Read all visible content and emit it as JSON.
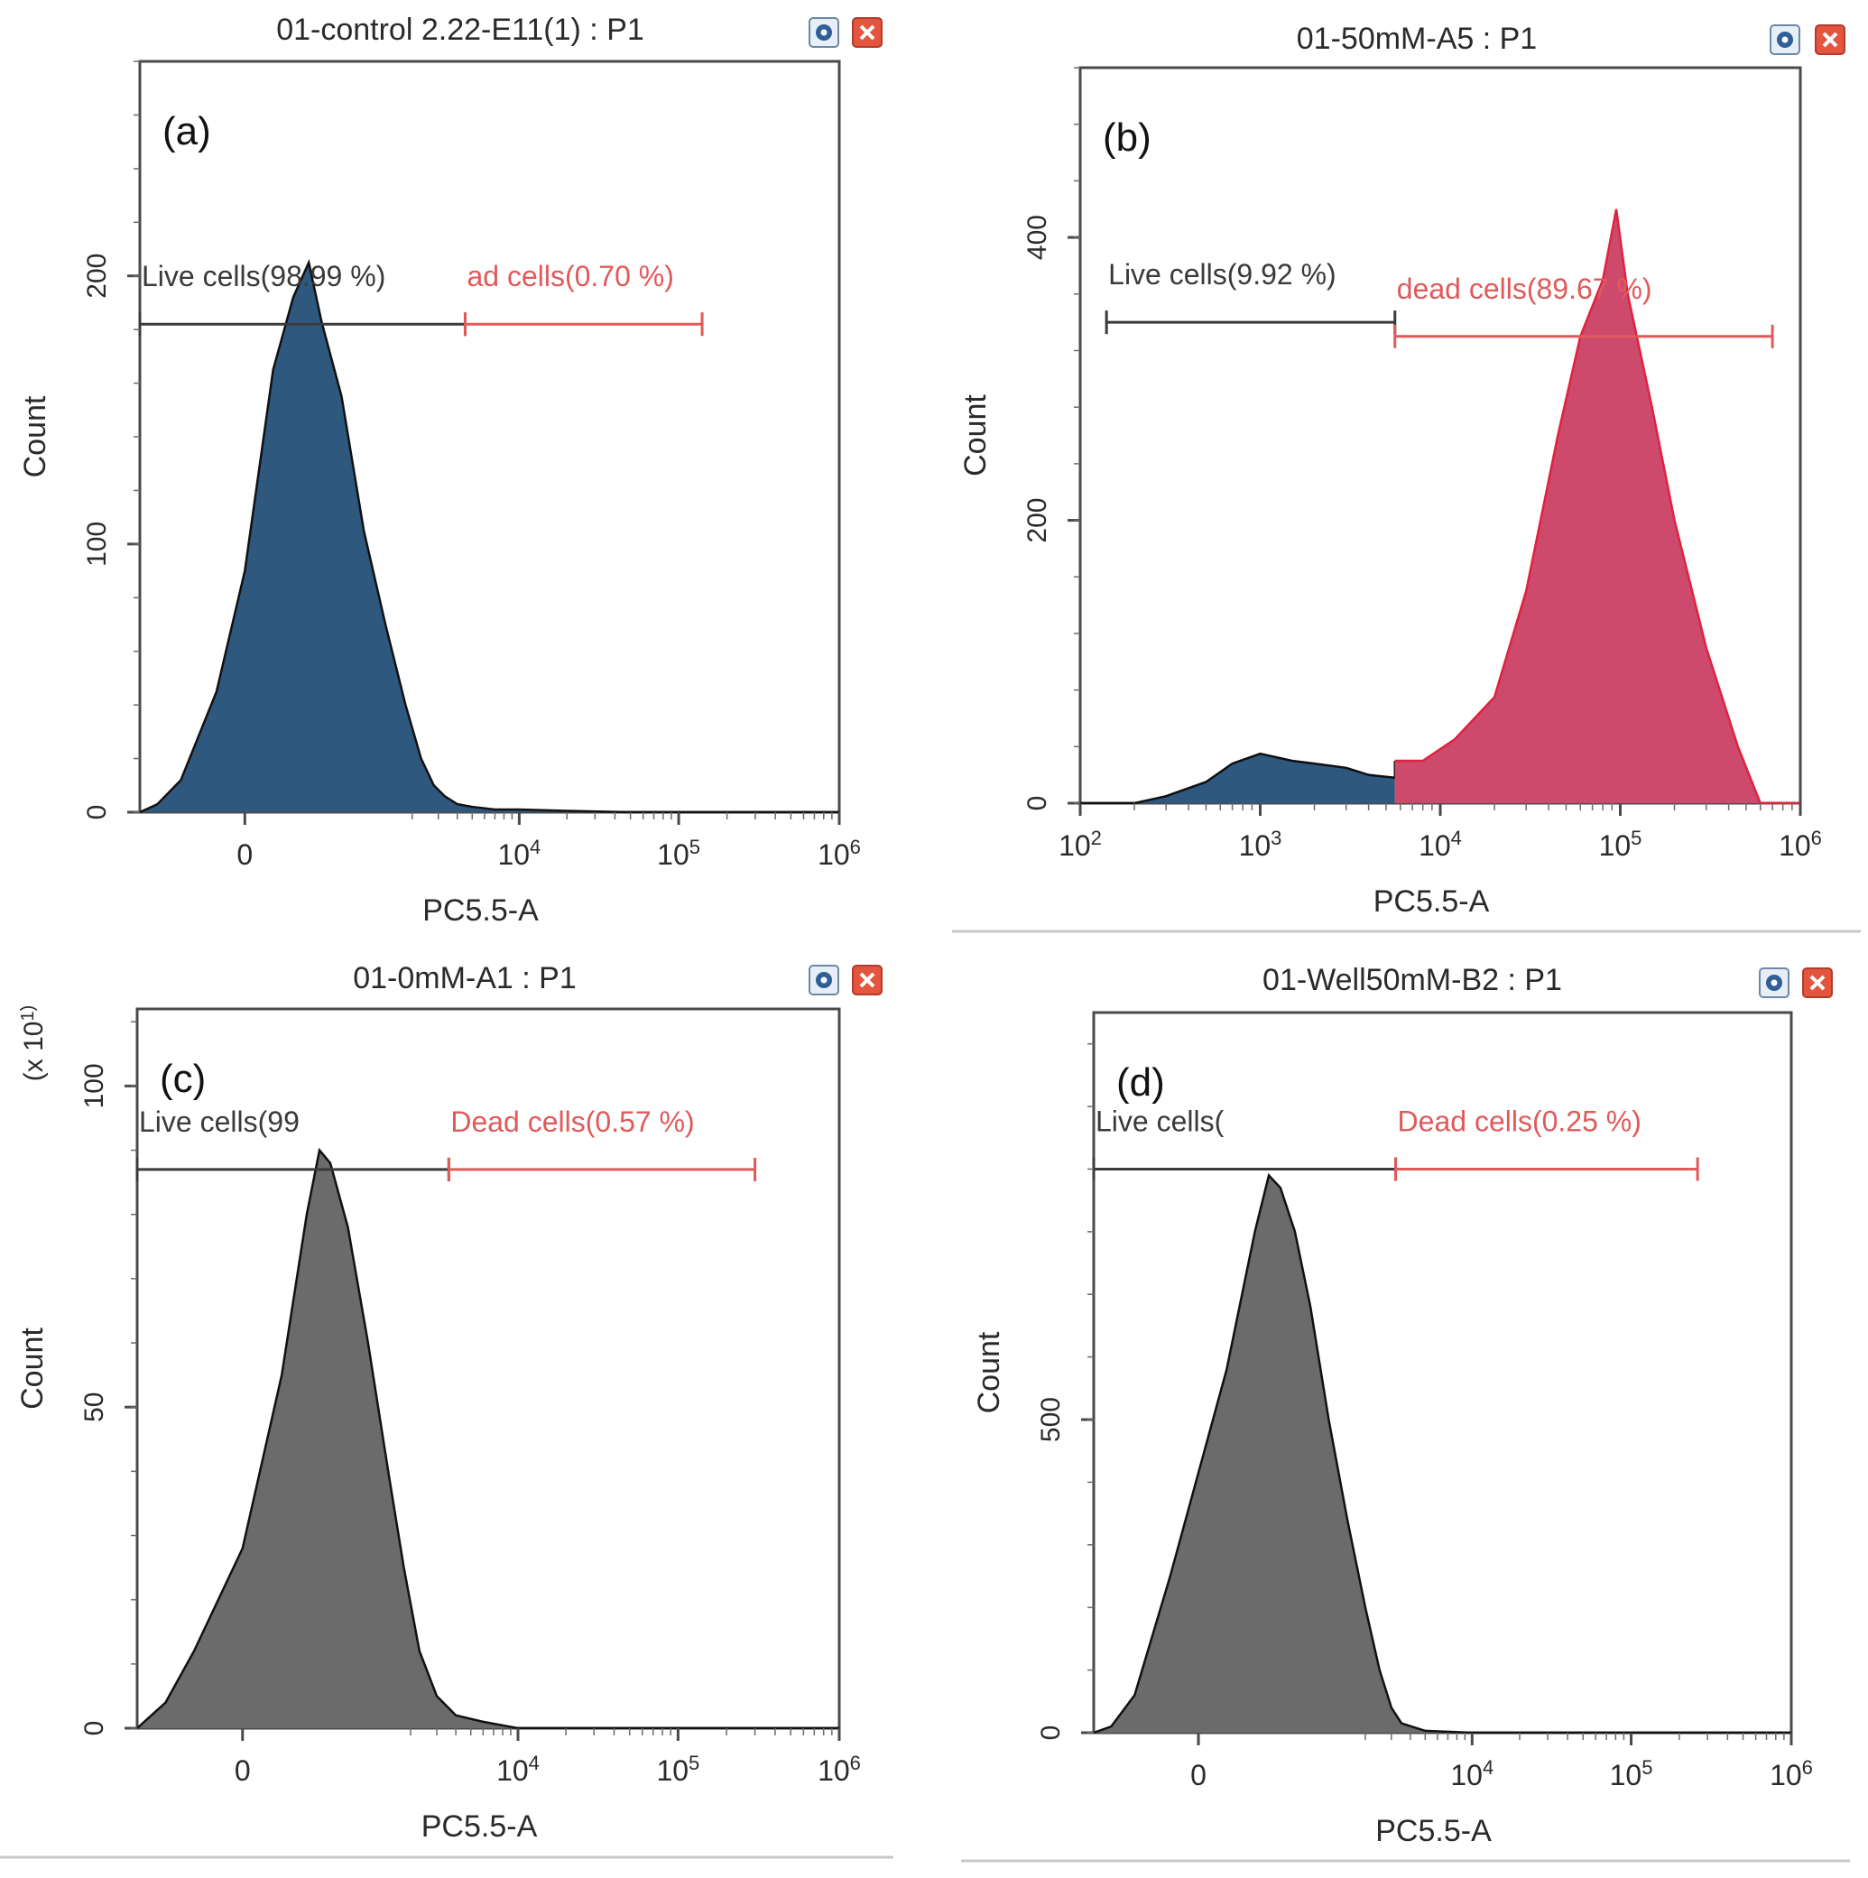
{
  "figure": {
    "separator_color": "#c8c8c8"
  },
  "chart_data": [
    {
      "type": "area",
      "panel_label": "(a)",
      "title": "01-control 2.22-E11(1) : P1",
      "xlabel": "PC5.5-A",
      "ylabel": "Count",
      "y_multiplier_label": "",
      "x_scale": "biexponential",
      "xlim": [
        -700,
        1000000
      ],
      "x_ticks": [
        {
          "value": 0,
          "label": "0"
        },
        {
          "value": 10000,
          "label": "10",
          "exp": "4"
        },
        {
          "value": 100000,
          "label": "10",
          "exp": "5"
        },
        {
          "value": 1000000,
          "label": "10",
          "exp": "6"
        }
      ],
      "ylim": [
        0,
        280
      ],
      "y_ticks": [
        0,
        100,
        200
      ],
      "fill_color": "#2f587f",
      "histogram": {
        "x": [
          -700,
          -500,
          -300,
          -100,
          0,
          100,
          200,
          300,
          400,
          600,
          900,
          1300,
          1800,
          2300,
          2800,
          3300,
          4000,
          5000,
          7000,
          10000,
          20000,
          50000,
          100000,
          200000,
          1000000
        ],
        "y": [
          0,
          3,
          12,
          45,
          90,
          165,
          192,
          205,
          183,
          155,
          105,
          70,
          40,
          20,
          10,
          6,
          3,
          2,
          1,
          1,
          0.5,
          0,
          0,
          0,
          0
        ]
      },
      "gates": [
        {
          "label": "Live cells(98.99 %)",
          "x0": -700,
          "x1": 4500,
          "y": 182,
          "color": "#3a3a3a"
        },
        {
          "label": "ad cells(0.70 %)",
          "x0": 4500,
          "x1": 140000,
          "y": 182,
          "color": "#e05a5a"
        }
      ]
    },
    {
      "type": "area",
      "panel_label": "(b)",
      "title": "01-50mM-A5 : P1",
      "xlabel": "PC5.5-A",
      "ylabel": "Count",
      "y_multiplier_label": "",
      "x_scale": "log",
      "xlim": [
        100,
        1000000
      ],
      "x_ticks": [
        {
          "value": 100,
          "label": "10",
          "exp": "2"
        },
        {
          "value": 1000,
          "label": "10",
          "exp": "3"
        },
        {
          "value": 10000,
          "label": "10",
          "exp": "4"
        },
        {
          "value": 100000,
          "label": "10",
          "exp": "5"
        },
        {
          "value": 1000000,
          "label": "10",
          "exp": "6"
        }
      ],
      "ylim": [
        0,
        520
      ],
      "y_ticks": [
        0,
        200,
        400
      ],
      "fill_color": "#2f587f",
      "fill_color_2": "#cd4a6c",
      "split_x": 5600,
      "histogram": {
        "x": [
          100,
          200,
          300,
          500,
          700,
          1000,
          1500,
          2000,
          3000,
          4000,
          5600,
          8000,
          12000,
          20000,
          30000,
          45000,
          60000,
          80000,
          95000,
          110000,
          150000,
          200000,
          300000,
          450000,
          600000,
          1000000
        ],
        "y": [
          0,
          0,
          5,
          15,
          28,
          35,
          30,
          28,
          25,
          20,
          18,
          30,
          45,
          75,
          150,
          260,
          330,
          370,
          420,
          360,
          280,
          200,
          110,
          40,
          0,
          0
        ]
      },
      "gates": [
        {
          "label": "Live cells(9.92 %)",
          "x0": 140,
          "x1": 5600,
          "y": 340,
          "color": "#3a3a3a"
        },
        {
          "label": "dead cells(89.67 %)",
          "x0": 5600,
          "x1": 700000,
          "y": 330,
          "color": "#e05a5a"
        }
      ]
    },
    {
      "type": "area",
      "panel_label": "(c)",
      "title": "01-0mM-A1 : P1",
      "xlabel": "PC5.5-A",
      "ylabel": "Count",
      "y_multiplier_label": "(x 10",
      "y_multiplier_exp": "1",
      "x_scale": "biexponential",
      "xlim": [
        -700,
        1000000
      ],
      "x_ticks": [
        {
          "value": 0,
          "label": "0"
        },
        {
          "value": 10000,
          "label": "10",
          "exp": "4"
        },
        {
          "value": 100000,
          "label": "10",
          "exp": "5"
        },
        {
          "value": 1000000,
          "label": "10",
          "exp": "6"
        }
      ],
      "ylim": [
        0,
        112
      ],
      "y_ticks": [
        0,
        50,
        100
      ],
      "fill_color": "#6b6b6b",
      "histogram": {
        "x": [
          -700,
          -400,
          -200,
          0,
          150,
          300,
          400,
          500,
          700,
          1000,
          1400,
          1800,
          2300,
          3000,
          4000,
          6000,
          10000,
          100000,
          1000000
        ],
        "y": [
          0,
          4,
          12,
          28,
          55,
          80,
          90,
          88,
          78,
          60,
          40,
          25,
          12,
          5,
          2,
          1,
          0,
          0,
          0
        ]
      },
      "gates": [
        {
          "label": "Live cells(99",
          "x0": -700,
          "x1": 3600,
          "y": 87,
          "color": "#3a3a3a"
        },
        {
          "label": "Dead cells(0.57 %)",
          "x0": 3600,
          "x1": 300000,
          "y": 87,
          "color": "#e05a5a"
        }
      ]
    },
    {
      "type": "area",
      "panel_label": "(d)",
      "title": "01-Well50mM-B2 : P1",
      "xlabel": "PC5.5-A",
      "ylabel": "Count",
      "y_multiplier_label": "",
      "x_scale": "biexponential",
      "xlim": [
        -700,
        1000000
      ],
      "x_ticks": [
        {
          "value": 0,
          "label": "0"
        },
        {
          "value": 10000,
          "label": "10",
          "exp": "4"
        },
        {
          "value": 100000,
          "label": "10",
          "exp": "5"
        },
        {
          "value": 1000000,
          "label": "10",
          "exp": "6"
        }
      ],
      "ylim": [
        0,
        1150
      ],
      "y_ticks": [
        0,
        500
      ],
      "fill_color": "#6b6b6b",
      "histogram": {
        "x": [
          -700,
          -500,
          -300,
          -100,
          100,
          250,
          350,
          450,
          600,
          800,
          1100,
          1500,
          2000,
          2500,
          3000,
          3500,
          5000,
          10000,
          100000,
          1000000
        ],
        "y": [
          0,
          10,
          60,
          250,
          580,
          800,
          890,
          870,
          800,
          680,
          500,
          340,
          200,
          100,
          40,
          15,
          3,
          0,
          0,
          0
        ]
      },
      "gates": [
        {
          "label": "Live cells(",
          "x0": -700,
          "x1": 3200,
          "y": 900,
          "color": "#3a3a3a"
        },
        {
          "label": "Dead cells(0.25 %)",
          "x0": 3200,
          "x1": 260000,
          "y": 900,
          "color": "#e05a5a"
        }
      ]
    }
  ]
}
